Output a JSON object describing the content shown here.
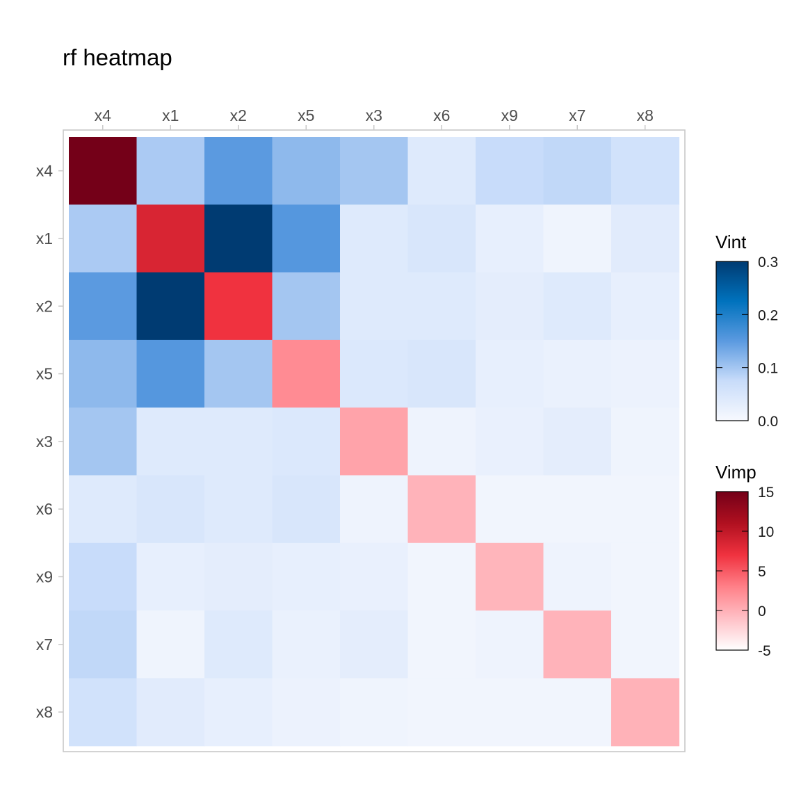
{
  "chart_data": {
    "type": "heatmap",
    "title": "rf heatmap",
    "x_categories": [
      "x4",
      "x1",
      "x2",
      "x5",
      "x3",
      "x6",
      "x9",
      "x7",
      "x8"
    ],
    "y_categories": [
      "x4",
      "x1",
      "x2",
      "x5",
      "x3",
      "x6",
      "x9",
      "x7",
      "x8"
    ],
    "diagonal_metric": "Vimp",
    "off_diagonal_metric": "Vint",
    "vimp_diagonal": [
      15.0,
      8.5,
      7.0,
      2.3,
      0.8,
      -0.2,
      -0.3,
      -0.2,
      -0.1
    ],
    "vint_matrix": [
      [
        null,
        0.095,
        0.15,
        0.115,
        0.1,
        0.04,
        0.075,
        0.08,
        0.06
      ],
      [
        0.095,
        null,
        0.3,
        0.155,
        0.04,
        0.05,
        0.025,
        0.012,
        0.035
      ],
      [
        0.15,
        0.3,
        null,
        0.1,
        0.04,
        0.04,
        0.03,
        0.04,
        0.025
      ],
      [
        0.115,
        0.155,
        0.1,
        null,
        0.045,
        0.05,
        0.025,
        0.02,
        0.018
      ],
      [
        0.1,
        0.04,
        0.04,
        0.045,
        null,
        0.015,
        0.022,
        0.03,
        0.012
      ],
      [
        0.04,
        0.05,
        0.04,
        0.05,
        0.015,
        null,
        0.01,
        0.01,
        0.01
      ],
      [
        0.075,
        0.025,
        0.03,
        0.025,
        0.022,
        0.01,
        null,
        0.015,
        0.01
      ],
      [
        0.08,
        0.012,
        0.04,
        0.02,
        0.03,
        0.01,
        0.015,
        null,
        0.01
      ],
      [
        0.06,
        0.035,
        0.025,
        0.018,
        0.012,
        0.01,
        0.01,
        0.01,
        null
      ]
    ],
    "legends": [
      {
        "title": "Vint",
        "min": 0.0,
        "max": 0.3,
        "ticks": [
          "0.0",
          "0.1",
          "0.2",
          "0.3"
        ],
        "colors": [
          "#f7f9fe",
          "#c8dcfa",
          "#5b9ae0",
          "#0072bd",
          "#003b72"
        ]
      },
      {
        "title": "Vimp",
        "min": -5,
        "max": 15,
        "ticks": [
          "-5",
          "0",
          "5",
          "10",
          "15"
        ],
        "colors": [
          "#ffffff",
          "#ffc0c6",
          "#ff8088",
          "#f0323f",
          "#b01020",
          "#740018"
        ]
      }
    ]
  }
}
